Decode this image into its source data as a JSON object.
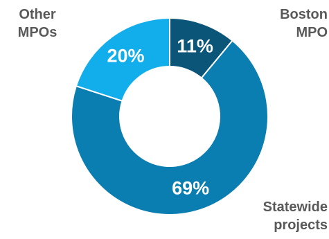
{
  "chart_data": {
    "type": "pie",
    "donut": true,
    "slices": [
      {
        "label": "Boston MPO",
        "label_lines": [
          "Boston",
          "MPO"
        ],
        "value": 11,
        "display": "11%",
        "color": "#0a5578"
      },
      {
        "label": "Statewide projects",
        "label_lines": [
          "Statewide",
          "projects"
        ],
        "value": 69,
        "display": "69%",
        "color": "#0a7db1"
      },
      {
        "label": "Other MPOs",
        "label_lines": [
          "Other",
          "MPOs"
        ],
        "value": 20,
        "display": "20%",
        "color": "#12aeec"
      }
    ],
    "value_label_color": "#ffffff",
    "callout_color": "#595959",
    "separator_color": "#ffffff",
    "start": "12 o'clock",
    "direction": "clockwise"
  }
}
